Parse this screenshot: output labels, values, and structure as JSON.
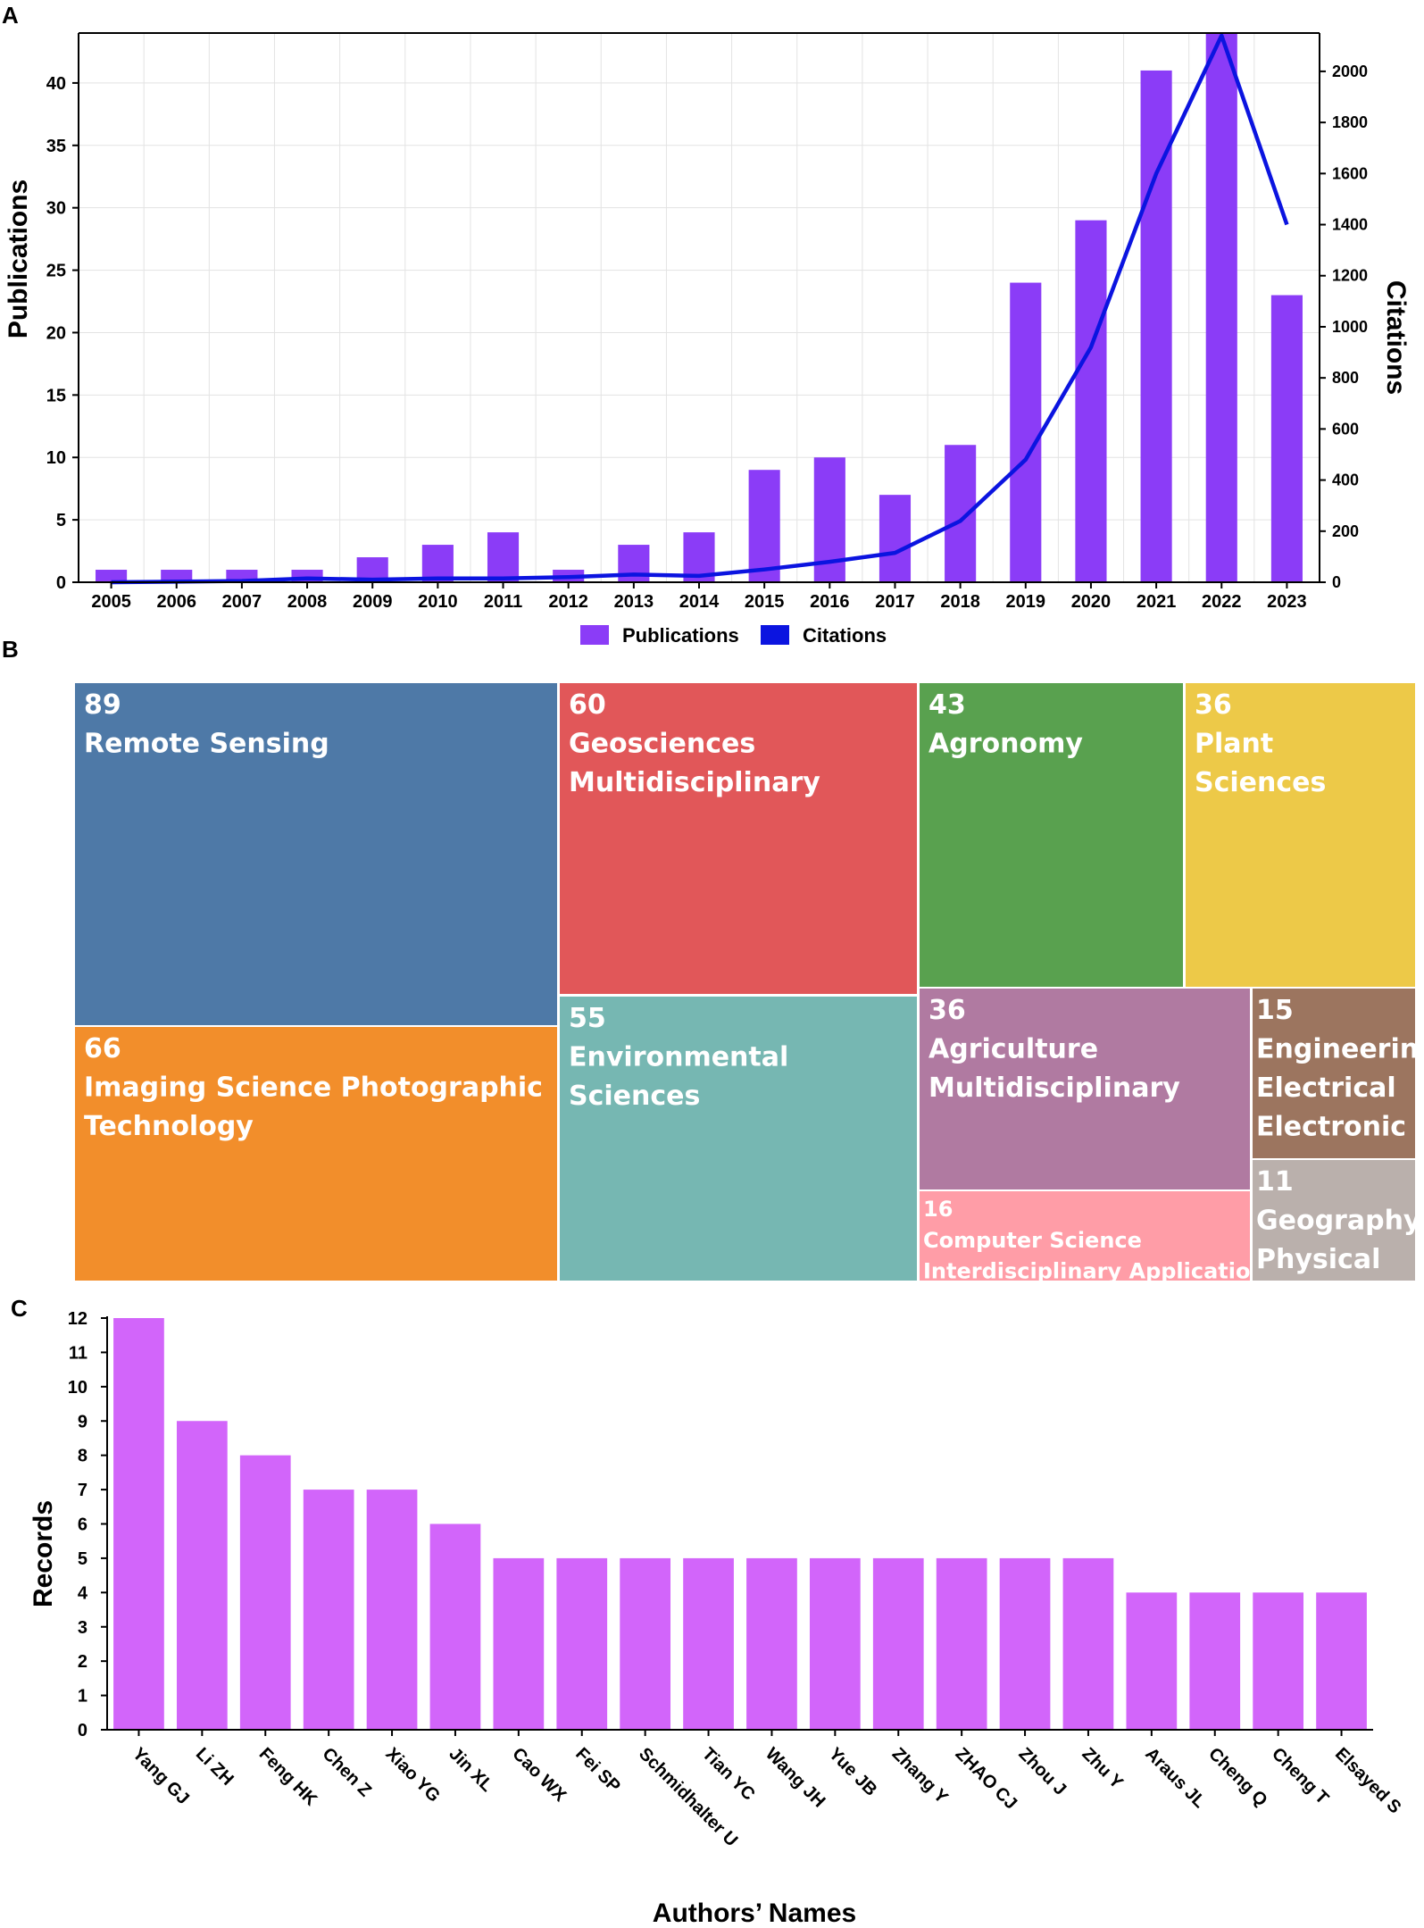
{
  "chart_data": [
    {
      "panel": "A",
      "type": "bar",
      "categories": [
        "2005",
        "2006",
        "2007",
        "2008",
        "2009",
        "2010",
        "2011",
        "2012",
        "2013",
        "2014",
        "2015",
        "2016",
        "2017",
        "2018",
        "2019",
        "2020",
        "2021",
        "2022",
        "2023"
      ],
      "series": [
        {
          "name": "Publications",
          "type": "bar",
          "axis": "left",
          "color": "#8b3cf7",
          "values": [
            1,
            1,
            1,
            1,
            2,
            3,
            4,
            1,
            3,
            4,
            9,
            10,
            7,
            11,
            24,
            29,
            41,
            44,
            23
          ]
        },
        {
          "name": "Citations",
          "type": "line",
          "axis": "right",
          "color": "#0b14e0",
          "values": [
            0,
            2,
            5,
            15,
            10,
            15,
            15,
            20,
            30,
            25,
            50,
            80,
            115,
            240,
            480,
            920,
            1600,
            2140,
            1400
          ]
        }
      ],
      "ylabel": "Publications",
      "y2label": "Citations",
      "ylim": [
        0,
        44
      ],
      "y2lim": [
        0,
        2150
      ],
      "yticks": [
        0,
        5,
        10,
        15,
        20,
        25,
        30,
        35,
        40
      ],
      "y2ticks": [
        0,
        200,
        400,
        600,
        800,
        1000,
        1200,
        1400,
        1600,
        1800,
        2000
      ],
      "grid": true,
      "legend": [
        "Publications",
        "Citations"
      ],
      "legend_position": "bottom"
    },
    {
      "panel": "B",
      "type": "treemap",
      "items": [
        {
          "label": "Remote Sensing",
          "value": 89,
          "color": "#4e79a7"
        },
        {
          "label": "Imaging Science Photographic Technology",
          "value": 66,
          "color": "#f28e2b"
        },
        {
          "label": "Geosciences Multidisciplinary",
          "value": 60,
          "color": "#e15759"
        },
        {
          "label": "Environmental Sciences",
          "value": 55,
          "color": "#76b7b2"
        },
        {
          "label": "Agronomy",
          "value": 43,
          "color": "#59a14f"
        },
        {
          "label": "Plant Sciences",
          "value": 36,
          "color": "#edc948"
        },
        {
          "label": "Agriculture Multidisciplinary",
          "value": 36,
          "color": "#b07aa1"
        },
        {
          "label": "Computer Science Interdisciplinary Applications",
          "value": 16,
          "color": "#ff9da7"
        },
        {
          "label": "Engineering Electrical Electronic",
          "value": 15,
          "color": "#9c755f"
        },
        {
          "label": "Geography Physical",
          "value": 11,
          "color": "#bab0ac"
        }
      ]
    },
    {
      "panel": "C",
      "type": "bar",
      "categories": [
        "Yang GJ",
        "Li ZH",
        "Feng HK",
        "Chen Z",
        "Xiao YG",
        "Jin XL",
        "Cao WX",
        "Fei SP",
        "Schmidhalter U",
        "Tian YC",
        "Wang JH",
        "Yue JB",
        "Zhang Y",
        "ZHAO CJ",
        "Zhou J",
        "Zhu Y",
        "Araus JL",
        "Cheng Q",
        "Cheng T",
        "Elsayed S"
      ],
      "values": [
        12,
        9,
        8,
        7,
        7,
        6,
        5,
        5,
        5,
        5,
        5,
        5,
        5,
        5,
        5,
        5,
        4,
        4,
        4,
        4
      ],
      "color": "#d265fa",
      "xlabel": "Authors’ Names",
      "ylabel": "Records",
      "ylim": [
        0,
        12
      ],
      "yticks": [
        0,
        1,
        2,
        3,
        4,
        5,
        6,
        7,
        8,
        9,
        10,
        11,
        12
      ],
      "grid": false
    }
  ],
  "panel_labels": {
    "a": "A",
    "b": "B",
    "c": "C"
  }
}
